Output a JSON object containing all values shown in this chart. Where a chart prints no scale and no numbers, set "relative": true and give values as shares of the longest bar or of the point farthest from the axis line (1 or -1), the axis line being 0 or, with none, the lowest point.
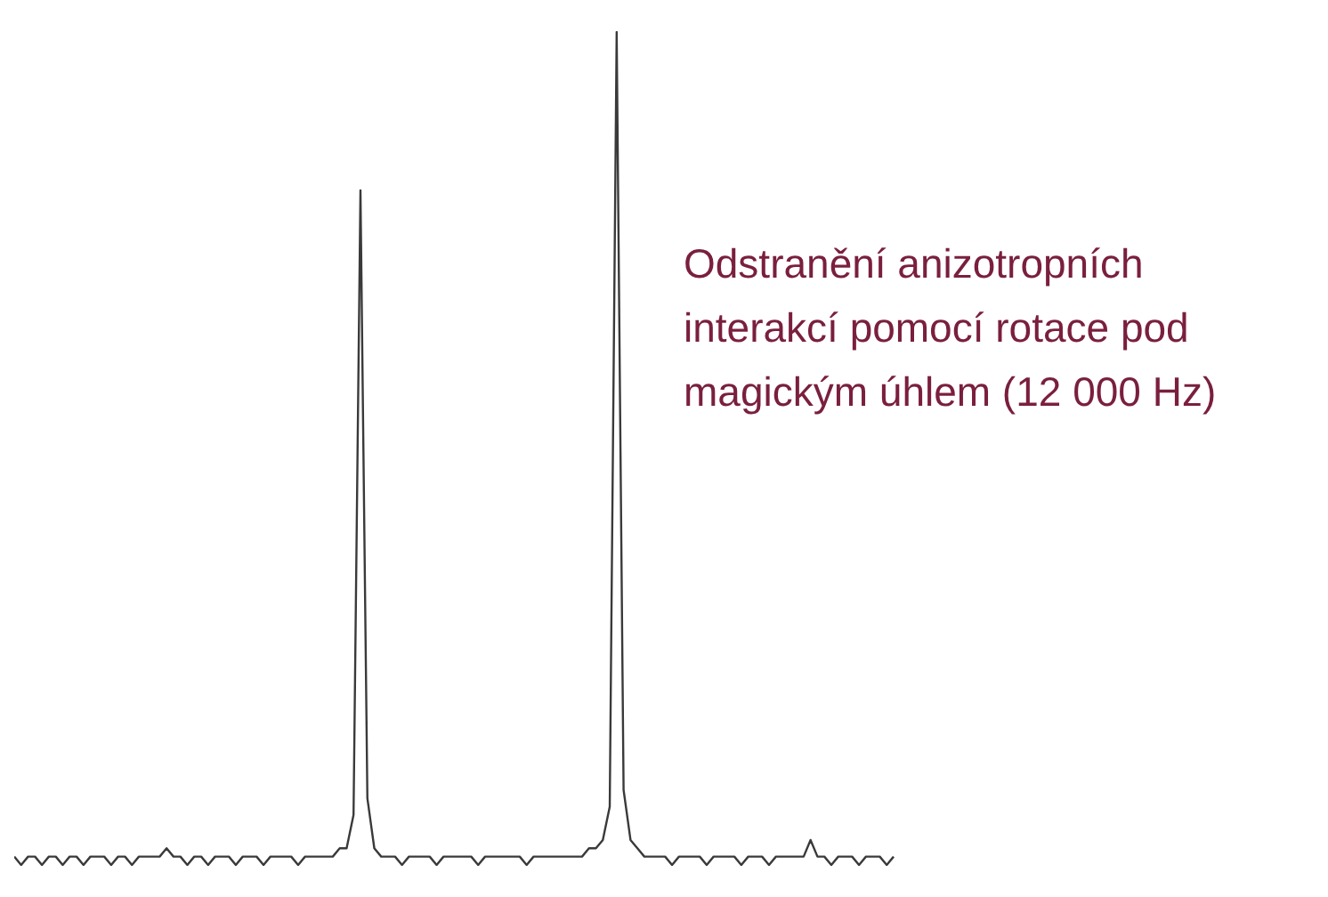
{
  "chart_data": {
    "type": "line",
    "relative": true,
    "categories": [
      null,
      null,
      null,
      null,
      null,
      null,
      null,
      null,
      null,
      null,
      null,
      null,
      null,
      null,
      null,
      null,
      null,
      null,
      null,
      null,
      null,
      null,
      null,
      null,
      null,
      null,
      null,
      null,
      null,
      null,
      null,
      null,
      null,
      null,
      null,
      null,
      null,
      null,
      null,
      null,
      null,
      null,
      null,
      null,
      null,
      null,
      null,
      null,
      null,
      null,
      null,
      null,
      null,
      null,
      null,
      null,
      null,
      null,
      null,
      null,
      null,
      null,
      null,
      null,
      null,
      null,
      null,
      null,
      null,
      null,
      null,
      null,
      null,
      null,
      null,
      null,
      null,
      null,
      null,
      null,
      null,
      null,
      null,
      null,
      null,
      null,
      null,
      null,
      null,
      null,
      null,
      null,
      null,
      null,
      null,
      null,
      null,
      null,
      null,
      null,
      null,
      null,
      null,
      null,
      null,
      null,
      null,
      null,
      null,
      null,
      null,
      null,
      null,
      null,
      null,
      null,
      null,
      null,
      null,
      null,
      null,
      null,
      null,
      null,
      null,
      null,
      null,
      null
    ],
    "series": [
      {
        "color": "#3a3a3a",
        "values": [
          0.01,
          0,
          0.01,
          0.01,
          0,
          0.01,
          0.01,
          0,
          0.01,
          0.01,
          0,
          0.01,
          0.01,
          0.01,
          0,
          0.01,
          0.01,
          0,
          0.01,
          0.01,
          0.01,
          0.01,
          0.02,
          0.01,
          0.01,
          0,
          0.01,
          0.01,
          0,
          0.01,
          0.01,
          0.01,
          0,
          0.01,
          0.01,
          0.01,
          0,
          0.01,
          0.01,
          0.01,
          0.01,
          0,
          0.01,
          0.01,
          0.01,
          0.01,
          0.01,
          0.02,
          0.02,
          0.06,
          0.81,
          0.08,
          0.02,
          0.01,
          0.01,
          0.01,
          0,
          0.01,
          0.01,
          0.01,
          0.01,
          0,
          0.01,
          0.01,
          0.01,
          0.01,
          0.01,
          0,
          0.01,
          0.01,
          0.01,
          0.01,
          0.01,
          0.01,
          0,
          0.01,
          0.01,
          0.01,
          0.01,
          0.01,
          0.01,
          0.01,
          0.01,
          0.02,
          0.02,
          0.03,
          0.07,
          1,
          0.09,
          0.03,
          0.02,
          0.01,
          0.01,
          0.01,
          0.01,
          0,
          0.01,
          0.01,
          0.01,
          0.01,
          0,
          0.01,
          0.01,
          0.01,
          0.01,
          0,
          0.01,
          0.01,
          0.01,
          0,
          0.01,
          0.01,
          0.01,
          0.01,
          0.01,
          0.03,
          0.01,
          0.01,
          0,
          0.01,
          0.01,
          0.01,
          0,
          0.01,
          0.01,
          0.01,
          0,
          0.01
        ]
      }
    ],
    "grid": false,
    "tick_labels": false,
    "annotations": [
      "Odstranění anizotropních interakcí pomocí rotace pod magickým úhlem (12 000 Hz)"
    ]
  }
}
